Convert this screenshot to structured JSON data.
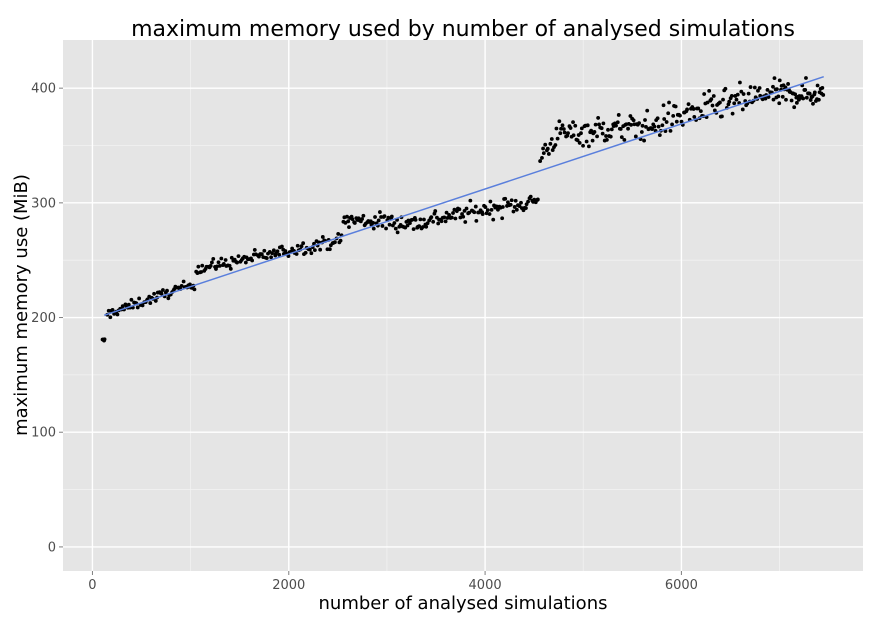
{
  "chart_data": {
    "type": "scatter",
    "title": "maximum memory used by number of analysed simulations",
    "xlabel": "number of analysed simulations",
    "ylabel": "maximum memory use (MiB)",
    "xlim": [
      -300,
      7850
    ],
    "ylim": [
      -21,
      442
    ],
    "x_ticks": [
      0,
      2000,
      4000,
      6000
    ],
    "y_ticks": [
      0,
      100,
      200,
      300,
      400
    ],
    "x_tick_labels": [
      "0",
      "2000",
      "4000",
      "6000"
    ],
    "y_tick_labels": [
      "0",
      "100",
      "200",
      "300",
      "400"
    ],
    "grid": true,
    "panel_background": "#e5e5e5",
    "point_color": "#000000",
    "trend_line": {
      "color": "#5a7fdc",
      "x": [
        120,
        7450
      ],
      "y": [
        202,
        410
      ]
    },
    "point_clusters": [
      {
        "x": [
          100,
          130
        ],
        "y_center": 180,
        "spread": 1.5,
        "count": 4
      },
      {
        "x": [
          150,
          1050
        ],
        "y_from": 203,
        "y_to": 230,
        "spread": 4,
        "count": 70
      },
      {
        "x": [
          1050,
          2550
        ],
        "y_from": 242,
        "y_to": 268,
        "spread": 5,
        "count": 110
      },
      {
        "x": [
          2550,
          3400
        ],
        "y_from": 285,
        "y_to": 282,
        "spread": 7,
        "count": 70
      },
      {
        "x": [
          3400,
          4550
        ],
        "y_from": 285,
        "y_to": 302,
        "spread": 7,
        "count": 90
      },
      {
        "x": [
          4560,
          4750
        ],
        "y_from": 340,
        "y_to": 360,
        "spread": 8,
        "count": 15
      },
      {
        "x": [
          4750,
          5800
        ],
        "y_from": 360,
        "y_to": 368,
        "spread": 11,
        "count": 90
      },
      {
        "x": [
          5800,
          6900
        ],
        "y_from": 372,
        "y_to": 395,
        "spread": 12,
        "count": 90
      },
      {
        "x": [
          6900,
          7450
        ],
        "y_from": 395,
        "y_to": 395,
        "spread": 10,
        "count": 60
      }
    ]
  }
}
